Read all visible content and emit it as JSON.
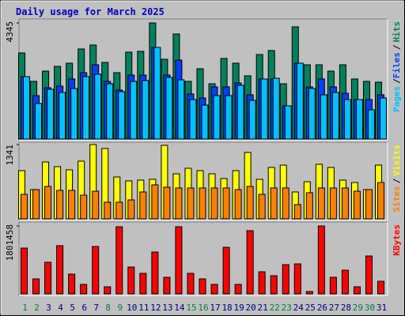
{
  "title": "Daily usage for March 2025",
  "legend_separator": "/",
  "categories": [
    "1",
    "2",
    "3",
    "4",
    "5",
    "6",
    "7",
    "8",
    "9",
    "10",
    "11",
    "12",
    "13",
    "14",
    "15",
    "16",
    "17",
    "18",
    "19",
    "20",
    "21",
    "22",
    "23",
    "24",
    "25",
    "26",
    "27",
    "28",
    "29",
    "30",
    "31"
  ],
  "category_colors": [
    "#008040",
    "#008040",
    "#000080",
    "#000080",
    "#000080",
    "#000080",
    "#000080",
    "#008040",
    "#008040",
    "#000080",
    "#000080",
    "#000080",
    "#000080",
    "#000080",
    "#008040",
    "#008040",
    "#000080",
    "#000080",
    "#000080",
    "#000080",
    "#000080",
    "#008040",
    "#008040",
    "#000080",
    "#000080",
    "#000080",
    "#000080",
    "#000080",
    "#008040",
    "#008040",
    "#000080"
  ],
  "chart_data": [
    {
      "type": "bar",
      "ylim": [
        0,
        4345
      ],
      "yticks": [
        4345
      ],
      "series": [
        {
          "name": "Hits",
          "color": "#00805c",
          "values": [
            3222,
            2158,
            2542,
            2720,
            2838,
            3370,
            3518,
            2867,
            2483,
            3252,
            3281,
            4345,
            2986,
            3931,
            2158,
            2631,
            2069,
            3015,
            2838,
            2365,
            3163,
            3311,
            2069,
            4198,
            2779,
            2779,
            2542,
            2779,
            2247,
            2158,
            2128
          ]
        },
        {
          "name": "Files",
          "color": "#0040ff",
          "values": [
            2335,
            1626,
            1921,
            1981,
            2247,
            2483,
            2779,
            2158,
            1833,
            2394,
            2394,
            3429,
            2394,
            2956,
            1685,
            1537,
            1951,
            1951,
            2099,
            1655,
            2247,
            2247,
            1242,
            2838,
            1951,
            2247,
            1951,
            1714,
            1478,
            1478,
            1655
          ]
        },
        {
          "name": "Pages",
          "color": "#00c0ff",
          "values": [
            2335,
            1330,
            1862,
            1744,
            1892,
            2335,
            2424,
            2069,
            1774,
            2158,
            2187,
            3429,
            2306,
            2217,
            1478,
            1271,
            1626,
            1626,
            2010,
            1448,
            2247,
            2276,
            1242,
            2838,
            1892,
            1655,
            1744,
            1478,
            1478,
            1094,
            1537
          ]
        }
      ]
    },
    {
      "type": "bar",
      "ylim": [
        0,
        1341
      ],
      "yticks": [
        1341
      ],
      "series": [
        {
          "name": "Visits",
          "color": "#ffff00",
          "values": [
            870,
            528,
            1027,
            942,
            885,
            1042,
            1341,
            1270,
            756,
            685,
            699,
            714,
            1327,
            813,
            913,
            870,
            813,
            728,
            870,
            1199,
            714,
            928,
            970,
            485,
            671,
            985,
            928,
            699,
            656,
            528,
            970
          ]
        },
        {
          "name": "Sites",
          "color": "#ff8000",
          "values": [
            442,
            528,
            585,
            514,
            514,
            428,
            499,
            300,
            300,
            342,
            485,
            614,
            571,
            557,
            557,
            557,
            557,
            557,
            528,
            585,
            442,
            557,
            557,
            257,
            471,
            557,
            557,
            557,
            499,
            528,
            656
          ]
        }
      ]
    },
    {
      "type": "bar",
      "ylim": [
        0,
        1801458
      ],
      "yticks": [
        1801458
      ],
      "series": [
        {
          "name": "KBytes",
          "color": "#ff0000",
          "values": [
            1214926,
            397993,
            837880,
            1277767,
            523675,
            251364,
            1256820,
            188523,
            1780000,
            712198,
            544622,
            1110191,
            439887,
            1780000,
            544622,
            397993,
            251364,
            1235873,
            251364,
            1675760,
            586516,
            481781,
            775039,
            795986,
            62841,
            1801458,
            439887,
            628410,
            188523,
            1005456,
            335152
          ]
        }
      ]
    }
  ]
}
